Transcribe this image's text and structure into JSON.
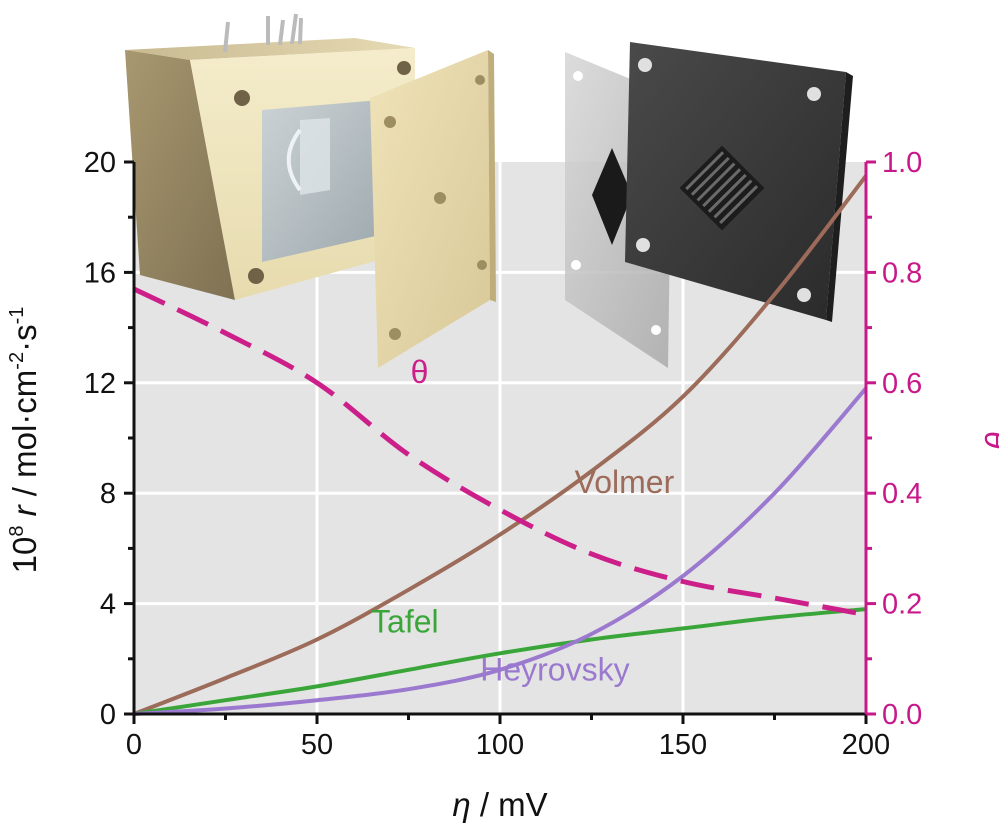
{
  "chart_data": {
    "type": "line",
    "title": "",
    "xlabel": {
      "symbol": "η",
      "unit": " / mV"
    },
    "ylabel_left": {
      "prefix": "10",
      "prefix_sup": "8",
      "symbol": "r",
      "unit_a": " / mol·cm",
      "unit_a_sup": "-2",
      "unit_b": "·s",
      "unit_b_sup": "-1"
    },
    "ylabel_right": "θ",
    "xlim": [
      0,
      200
    ],
    "ylim_left": [
      0,
      20
    ],
    "ylim_right": [
      0,
      1.0
    ],
    "grid": true,
    "x_ticks": [
      0,
      50,
      100,
      150,
      200
    ],
    "x_tick_labels": [
      "0",
      "50",
      "100",
      "150",
      "200"
    ],
    "y_left_ticks": [
      0,
      4,
      8,
      12,
      16,
      20
    ],
    "y_left_tick_labels": [
      "0",
      "4",
      "8",
      "12",
      "16",
      "20"
    ],
    "y_right_ticks": [
      0,
      0.2,
      0.4,
      0.6,
      0.8,
      1.0
    ],
    "y_right_tick_labels": [
      "0.0",
      "0.2",
      "0.4",
      "0.6",
      "0.8",
      "1.0"
    ],
    "series": [
      {
        "name": "Volmer",
        "axis": "left",
        "color": "#9c6b5a",
        "dash": "solid",
        "x": [
          0,
          25,
          50,
          75,
          100,
          125,
          150,
          175,
          200
        ],
        "y": [
          0,
          1.3,
          2.7,
          4.5,
          6.5,
          8.8,
          11.5,
          15.2,
          19.5
        ]
      },
      {
        "name": "Tafel",
        "axis": "left",
        "color": "#3aa63a",
        "dash": "solid",
        "x": [
          0,
          25,
          50,
          75,
          100,
          125,
          150,
          175,
          200
        ],
        "y": [
          0,
          0.5,
          1.0,
          1.6,
          2.2,
          2.7,
          3.1,
          3.5,
          3.8
        ]
      },
      {
        "name": "Heyrovsky",
        "axis": "left",
        "color": "#9b79cf",
        "dash": "solid",
        "x": [
          0,
          25,
          50,
          75,
          100,
          125,
          150,
          175,
          200
        ],
        "y": [
          0,
          0.2,
          0.5,
          0.9,
          1.6,
          2.9,
          5.0,
          8.0,
          11.8
        ]
      },
      {
        "name": "θ",
        "axis": "right",
        "color": "#cc1f8a",
        "dash": "dashed",
        "x": [
          0,
          25,
          50,
          75,
          100,
          125,
          150,
          175,
          200
        ],
        "y": [
          0.77,
          0.69,
          0.6,
          0.47,
          0.37,
          0.29,
          0.24,
          0.21,
          0.18
        ]
      }
    ],
    "annotations": [
      {
        "text": "θ",
        "x": 78,
        "y": 12,
        "axis": "left",
        "color": "#cc1f8a"
      },
      {
        "text": "Volmer",
        "x": 134,
        "y": 8,
        "axis": "left",
        "color": "#9c6b5a"
      },
      {
        "text": "Tafel",
        "x": 74,
        "y": 2.95,
        "axis": "left",
        "color": "#3aa63a"
      },
      {
        "text": "Heyrovsky",
        "x": 115,
        "y": 1.22,
        "axis": "left",
        "color": "#9b79cf"
      }
    ],
    "colors": {
      "plot_background": "#e4e4e4",
      "grid": "#ffffff",
      "right_axis": "#c8198a",
      "text": "#111111"
    }
  },
  "illustrations": [
    {
      "name": "electrochemical-cell-body-and-cover"
    },
    {
      "name": "electrode-and-flow-plate"
    }
  ]
}
